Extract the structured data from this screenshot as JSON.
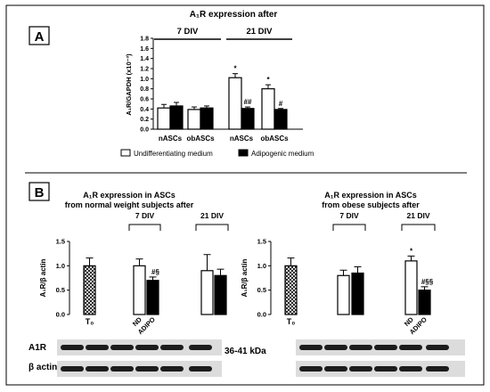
{
  "chart_data": [
    {
      "panel": "A",
      "type": "bar",
      "title": "A₁R expression after",
      "ylabel": "A₁R/GAPDH (x10⁻³)",
      "ylim": [
        0,
        1.8
      ],
      "yticks": [
        "0.0",
        "0.2",
        "0.4",
        "0.6",
        "0.8",
        "1.0",
        "1.2",
        "1.4",
        "1.6",
        "1.8"
      ],
      "groups": [
        {
          "label": "7 DIV",
          "categories": [
            "nASCs",
            "obASCs"
          ]
        },
        {
          "label": "21 DIV",
          "categories": [
            "nASCs",
            "obASCs"
          ]
        }
      ],
      "categories": [
        "nASCs",
        "obASCs",
        "nASCs",
        "obASCs"
      ],
      "series": [
        {
          "name": "Undifferentiating medium",
          "color": "#ffffff",
          "values": [
            0.42,
            0.39,
            1.02,
            0.8
          ],
          "errors": [
            0.07,
            0.05,
            0.08,
            0.08
          ],
          "annotations": [
            "",
            "",
            "*",
            "*"
          ]
        },
        {
          "name": "Adipogenic medium",
          "color": "#000000",
          "values": [
            0.46,
            0.42,
            0.41,
            0.39
          ],
          "errors": [
            0.07,
            0.04,
            0.03,
            0.02
          ],
          "annotations": [
            "",
            "",
            "##",
            "#"
          ]
        }
      ],
      "legend": "bottom"
    },
    {
      "panel": "B",
      "type": "bar",
      "title_lines": [
        "A₁R expression in ASCs",
        "from normal weight subjects after"
      ],
      "ylabel": "A₁R/β actin",
      "ylim": [
        0,
        1.5
      ],
      "yticks": [
        "0.0",
        "0.5",
        "1.0",
        "1.5"
      ],
      "bars": [
        {
          "label": "T₀",
          "value": 1.0,
          "error": 0.16,
          "fill": "hatched",
          "annotation": ""
        },
        {
          "label": "ND",
          "value": 1.0,
          "error": 0.14,
          "fill": "white",
          "annotation": ""
        },
        {
          "label": "ADIPO",
          "value": 0.7,
          "error": 0.07,
          "fill": "black",
          "annotation": "#§"
        },
        {
          "label": "",
          "value": 0.9,
          "error": 0.33,
          "fill": "white",
          "annotation": ""
        },
        {
          "label": "",
          "value": 0.8,
          "error": 0.13,
          "fill": "black",
          "annotation": ""
        }
      ],
      "groups": [
        "7 DIV",
        "21 DIV"
      ]
    },
    {
      "panel": "B",
      "type": "bar",
      "title_lines": [
        "A₁R expression in ASCs",
        "from obese subjects after"
      ],
      "ylabel": "A₁R/β actin",
      "ylim": [
        0,
        1.5
      ],
      "yticks": [
        "0.0",
        "0.5",
        "1.0",
        "1.5"
      ],
      "bars": [
        {
          "label": "T₀",
          "value": 1.0,
          "error": 0.16,
          "fill": "hatched",
          "annotation": ""
        },
        {
          "label": "",
          "value": 0.8,
          "error": 0.11,
          "fill": "white",
          "annotation": ""
        },
        {
          "label": "",
          "value": 0.85,
          "error": 0.13,
          "fill": "black",
          "annotation": ""
        },
        {
          "label": "ND",
          "value": 1.1,
          "error": 0.1,
          "fill": "white",
          "annotation": "*"
        },
        {
          "label": "ADIPO",
          "value": 0.5,
          "error": 0.07,
          "fill": "black",
          "annotation": "#§§"
        }
      ],
      "groups": [
        "7 DIV",
        "21 DIV"
      ]
    }
  ],
  "blot": {
    "rows": [
      "A1R",
      "β actin"
    ],
    "size": "36-41 kDa"
  }
}
